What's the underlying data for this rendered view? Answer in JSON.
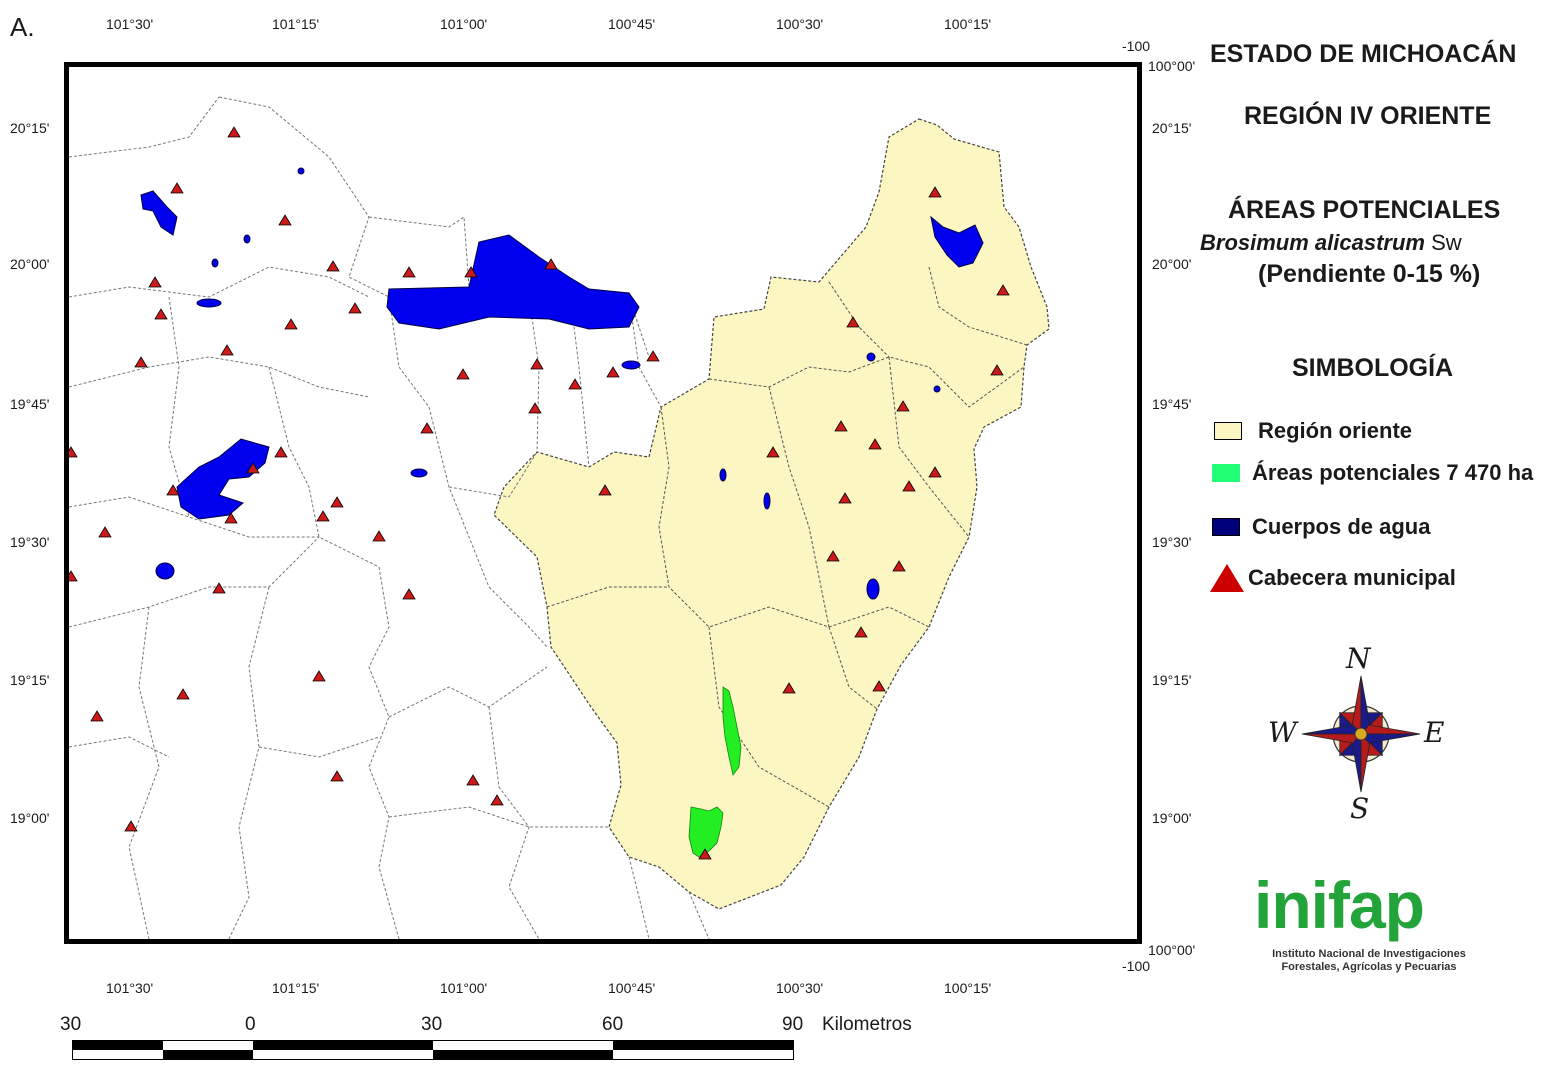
{
  "panel_label": "A.",
  "coords": {
    "top_lon": [
      "101°30'",
      "101°15'",
      "101°00'",
      "100°45'",
      "100°30'",
      "100°15'"
    ],
    "bottom_lon": [
      "101°30'",
      "101°15'",
      "101°00'",
      "100°45'",
      "100°30'",
      "100°15'"
    ],
    "left_lat": [
      "20°15'",
      "20°00'",
      "19°45'",
      "19°30'",
      "19°15'",
      "19°00'"
    ],
    "right_lat": [
      "20°15'",
      "20°00'",
      "19°45'",
      "19°30'",
      "19°15'",
      "19°00'"
    ],
    "corner_tr_a": "-100",
    "corner_tr_b": "100°00'",
    "corner_br_a": "100°00'",
    "corner_br_b": "-100"
  },
  "title": {
    "line1": "ESTADO DE MICHOACÁN",
    "line2": "REGIÓN IV ORIENTE",
    "line3": "ÁREAS POTENCIALES",
    "species_italic": "Brosimum alicastrum",
    "species_author": " Sw",
    "line5": "(Pendiente 0-15 %)"
  },
  "legend": {
    "heading": "SIMBOLOGÍA",
    "items": [
      {
        "label": "Región oriente",
        "color": "#fbf6c2"
      },
      {
        "label": "Áreas potenciales 7 470 ha",
        "color": "#22ff77"
      },
      {
        "label": "Cuerpos de agua",
        "color": "#00007a"
      },
      {
        "label": "Cabecera municipal",
        "color": "#cc0000"
      }
    ]
  },
  "compass": {
    "n": "N",
    "s": "S",
    "e": "E",
    "w": "W"
  },
  "scale": {
    "labels": [
      "30",
      "0",
      "30",
      "60",
      "90"
    ],
    "unit": "Kilometros"
  },
  "logo": {
    "name": "inifap",
    "line1": "Instituto Nacional de Investigaciones",
    "line2": "Forestales, Agrícolas y Pecuarias"
  },
  "colors": {
    "region": "#fbf6c2",
    "potential": "#22ee22",
    "water": "#0000ee",
    "seat": "#cc1a1a"
  }
}
